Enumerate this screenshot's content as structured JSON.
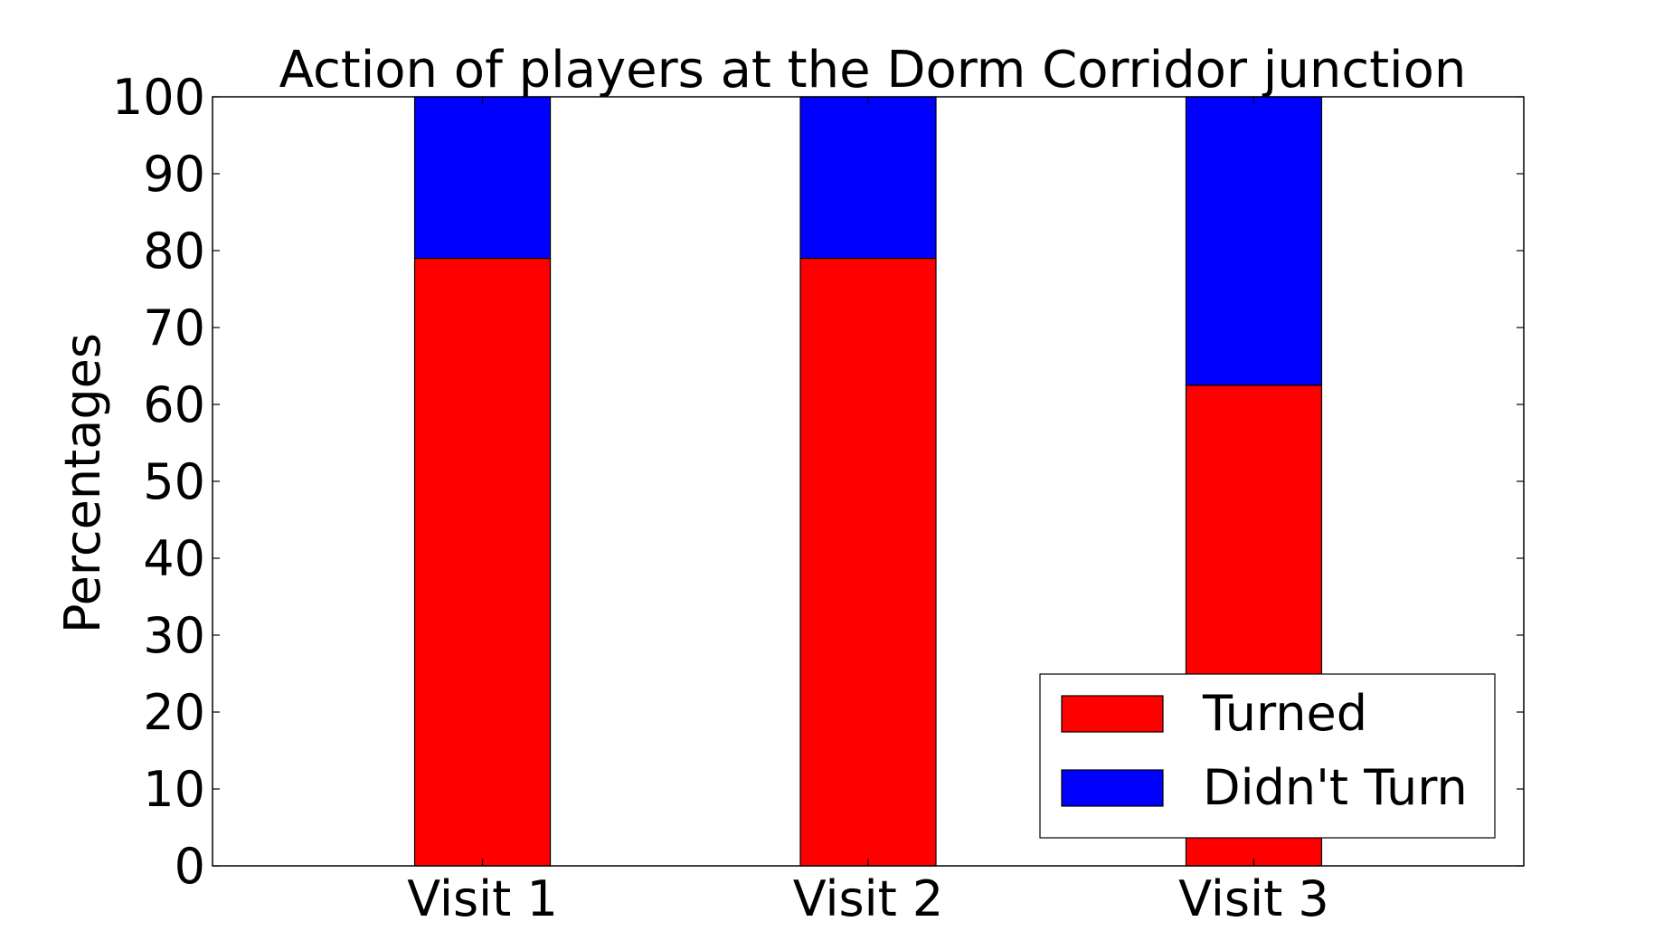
{
  "chart_data": {
    "type": "bar",
    "stacked": true,
    "title": "Action of players at the Dorm Corridor junction",
    "xlabel": "",
    "ylabel": "Percentages",
    "categories": [
      "Visit 1",
      "Visit 2",
      "Visit 3"
    ],
    "series": [
      {
        "name": "Turned",
        "color": "#ff0000",
        "values": [
          79,
          79,
          62.5
        ]
      },
      {
        "name": "Didn't Turn",
        "color": "#0000ff",
        "values": [
          21,
          21,
          37.5
        ]
      }
    ],
    "ylim": [
      0,
      100
    ],
    "yticks": [
      0,
      10,
      20,
      30,
      40,
      50,
      60,
      70,
      80,
      90,
      100
    ],
    "grid": false,
    "legend_position": "lower-right"
  }
}
